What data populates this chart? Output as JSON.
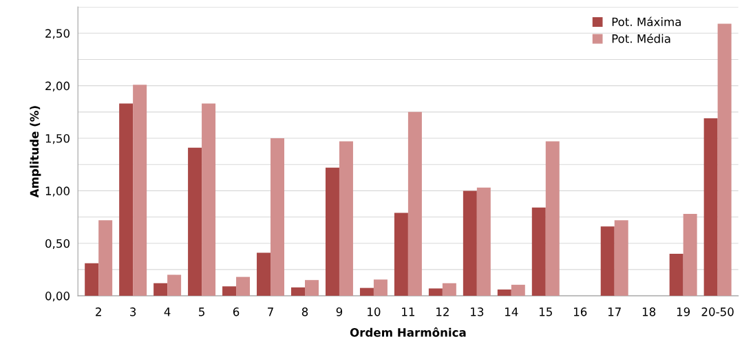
{
  "chart_data": {
    "type": "bar",
    "xlabel": "Ordem Harmônica",
    "ylabel": "Amplitude (%)",
    "categories": [
      "2",
      "3",
      "4",
      "5",
      "6",
      "7",
      "8",
      "9",
      "10",
      "11",
      "12",
      "13",
      "14",
      "15",
      "16",
      "17",
      "18",
      "19",
      "20-50"
    ],
    "series": [
      {
        "name": "Pot. Máxima",
        "color": "#a94745",
        "values": [
          0.31,
          1.83,
          0.12,
          1.41,
          0.09,
          0.41,
          0.08,
          1.22,
          0.075,
          0.79,
          0.07,
          1.0,
          0.06,
          0.84,
          0,
          0.66,
          0,
          0.4,
          1.69
        ]
      },
      {
        "name": "Pot. Média",
        "color": "#d28f8e",
        "values": [
          0.72,
          2.01,
          0.2,
          1.83,
          0.18,
          1.5,
          0.15,
          1.47,
          0.155,
          1.75,
          0.12,
          1.03,
          0.105,
          1.47,
          0,
          0.72,
          0,
          0.78,
          2.59
        ]
      }
    ],
    "ylim": [
      0,
      2.75
    ],
    "yticks": [
      {
        "value": 0,
        "label": "0,00"
      },
      {
        "value": 0.25,
        "label": null
      },
      {
        "value": 0.5,
        "label": "0,50"
      },
      {
        "value": 0.75,
        "label": null
      },
      {
        "value": 1,
        "label": "1,00"
      },
      {
        "value": 1.25,
        "label": null
      },
      {
        "value": 1.5,
        "label": "1,50"
      },
      {
        "value": 1.75,
        "label": null
      },
      {
        "value": 2,
        "label": "2,00"
      },
      {
        "value": 2.25,
        "label": null
      },
      {
        "value": 2.5,
        "label": "2,50"
      },
      {
        "value": 2.75,
        "label": null
      }
    ],
    "grid": "y",
    "legend": "top right"
  }
}
